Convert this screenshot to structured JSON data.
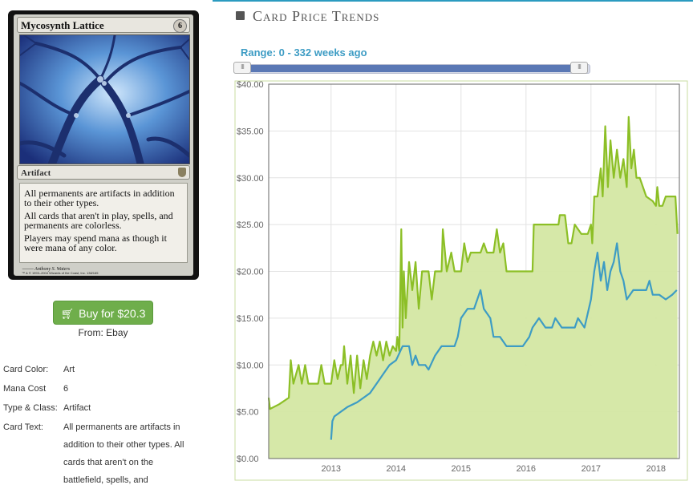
{
  "card": {
    "name": "Mycosynth Lattice",
    "mana_cost_symbol": "6",
    "type_line": "Artifact",
    "rules_text": [
      "All permanents are artifacts in addition to their other types.",
      "All cards that aren't in play, spells, and permanents are colorless.",
      "Players may spend mana as though it were mana of any color."
    ],
    "artist": "Anthony S. Waters",
    "copyright": "™ & © 1993–2004 Wizards of the Coast, Inc. 138/165"
  },
  "buy": {
    "label": "Buy for $20.3",
    "icon": "cart-icon",
    "from_label": "From:",
    "from_value": "Ebay"
  },
  "info": {
    "rows": [
      {
        "key": "Card Color:",
        "value": "Art"
      },
      {
        "key": "Mana Cost",
        "value": "6"
      },
      {
        "key": "Type & Class:",
        "value": "Artifact"
      }
    ],
    "card_text_key": "Card Text:",
    "card_text_lines": [
      "All permanents are artifacts in",
      "addition to their other types. All",
      "cards that aren't on the",
      "battlefield, spells, and"
    ]
  },
  "header": {
    "title": "Card Price Trends",
    "icon": "calendar-icon"
  },
  "range": {
    "label": "Range: 0 - 332 weeks ago",
    "min_weeks": 0,
    "max_weeks": 332,
    "handle_glyph": "III"
  },
  "colors": {
    "accent": "#2b9bc0",
    "green_line": "#8cbf26",
    "green_fill": "#d4e7a3",
    "blue_line": "#3d9cc4",
    "buy_button": "#6fae4b",
    "slider": "#5a78b5"
  },
  "chart_data": {
    "type": "area",
    "y_ticks": [
      "$0.00",
      "$5.00",
      "$10.00",
      "$15.00",
      "$20.00",
      "$25.00",
      "$30.00",
      "$35.00",
      "$40.00"
    ],
    "x_ticks": [
      "2013",
      "2014",
      "2015",
      "2016",
      "2017",
      "2018"
    ],
    "ylim": [
      0,
      40
    ],
    "xlim": [
      2012.04,
      2018.36
    ],
    "grid": true,
    "series": [
      {
        "color": "#8cbf26",
        "filled": true,
        "points": [
          [
            2012.04,
            6.5
          ],
          [
            2012.06,
            5.3
          ],
          [
            2012.2,
            5.8
          ],
          [
            2012.35,
            6.5
          ],
          [
            2012.38,
            10.5
          ],
          [
            2012.42,
            8
          ],
          [
            2012.5,
            10
          ],
          [
            2012.55,
            8
          ],
          [
            2012.6,
            10
          ],
          [
            2012.65,
            8
          ],
          [
            2012.8,
            8
          ],
          [
            2012.85,
            10
          ],
          [
            2012.9,
            8
          ],
          [
            2013.0,
            8
          ],
          [
            2013.05,
            10.5
          ],
          [
            2013.1,
            8.5
          ],
          [
            2013.15,
            10
          ],
          [
            2013.18,
            10
          ],
          [
            2013.2,
            12
          ],
          [
            2013.25,
            8
          ],
          [
            2013.3,
            11
          ],
          [
            2013.35,
            7
          ],
          [
            2013.4,
            11
          ],
          [
            2013.45,
            7.5
          ],
          [
            2013.5,
            10.5
          ],
          [
            2013.55,
            8.5
          ],
          [
            2013.6,
            11
          ],
          [
            2013.65,
            12.5
          ],
          [
            2013.7,
            11
          ],
          [
            2013.75,
            12.5
          ],
          [
            2013.8,
            10.5
          ],
          [
            2013.85,
            12.5
          ],
          [
            2013.9,
            11
          ],
          [
            2013.95,
            12
          ],
          [
            2014.0,
            11.5
          ],
          [
            2014.02,
            13
          ],
          [
            2014.05,
            11.5
          ],
          [
            2014.08,
            24.5
          ],
          [
            2014.1,
            14
          ],
          [
            2014.12,
            20
          ],
          [
            2014.15,
            15
          ],
          [
            2014.2,
            21
          ],
          [
            2014.25,
            18
          ],
          [
            2014.3,
            21
          ],
          [
            2014.35,
            16
          ],
          [
            2014.4,
            20
          ],
          [
            2014.5,
            20
          ],
          [
            2014.55,
            17
          ],
          [
            2014.6,
            20
          ],
          [
            2014.7,
            20
          ],
          [
            2014.72,
            24.5
          ],
          [
            2014.78,
            20
          ],
          [
            2014.85,
            22
          ],
          [
            2014.9,
            20
          ],
          [
            2015.0,
            20
          ],
          [
            2015.05,
            23
          ],
          [
            2015.1,
            21
          ],
          [
            2015.15,
            22
          ],
          [
            2015.2,
            22
          ],
          [
            2015.3,
            22
          ],
          [
            2015.35,
            23
          ],
          [
            2015.4,
            22
          ],
          [
            2015.5,
            22
          ],
          [
            2015.55,
            24.5
          ],
          [
            2015.6,
            22
          ],
          [
            2015.65,
            23
          ],
          [
            2015.7,
            20
          ],
          [
            2015.8,
            20
          ],
          [
            2016.0,
            20
          ],
          [
            2016.1,
            20
          ],
          [
            2016.12,
            25
          ],
          [
            2016.2,
            25
          ],
          [
            2016.3,
            25
          ],
          [
            2016.35,
            25
          ],
          [
            2016.5,
            25
          ],
          [
            2016.52,
            26
          ],
          [
            2016.6,
            26
          ],
          [
            2016.65,
            23
          ],
          [
            2016.7,
            23
          ],
          [
            2016.75,
            25
          ],
          [
            2016.85,
            24
          ],
          [
            2016.95,
            24
          ],
          [
            2017.0,
            25
          ],
          [
            2017.02,
            23
          ],
          [
            2017.05,
            28
          ],
          [
            2017.1,
            28
          ],
          [
            2017.15,
            31
          ],
          [
            2017.18,
            28
          ],
          [
            2017.22,
            35.5
          ],
          [
            2017.26,
            29
          ],
          [
            2017.3,
            34
          ],
          [
            2017.35,
            30
          ],
          [
            2017.4,
            33
          ],
          [
            2017.45,
            30
          ],
          [
            2017.5,
            32
          ],
          [
            2017.55,
            29
          ],
          [
            2017.58,
            36.5
          ],
          [
            2017.62,
            31
          ],
          [
            2017.66,
            33
          ],
          [
            2017.7,
            30
          ],
          [
            2017.75,
            30
          ],
          [
            2017.85,
            28
          ],
          [
            2017.95,
            27.5
          ],
          [
            2018.0,
            27
          ],
          [
            2018.02,
            29
          ],
          [
            2018.05,
            27
          ],
          [
            2018.1,
            27
          ],
          [
            2018.15,
            28
          ],
          [
            2018.3,
            28
          ],
          [
            2018.33,
            24
          ]
        ]
      },
      {
        "color": "#3d9cc4",
        "filled": false,
        "points": [
          [
            2013.0,
            2
          ],
          [
            2013.02,
            4
          ],
          [
            2013.05,
            4.5
          ],
          [
            2013.15,
            5
          ],
          [
            2013.25,
            5.5
          ],
          [
            2013.4,
            6
          ],
          [
            2013.5,
            6.5
          ],
          [
            2013.6,
            7
          ],
          [
            2013.7,
            8
          ],
          [
            2013.8,
            9
          ],
          [
            2013.9,
            10
          ],
          [
            2014.0,
            10.5
          ],
          [
            2014.1,
            12
          ],
          [
            2014.2,
            12
          ],
          [
            2014.25,
            10
          ],
          [
            2014.3,
            11
          ],
          [
            2014.35,
            10
          ],
          [
            2014.45,
            10
          ],
          [
            2014.5,
            9.5
          ],
          [
            2014.6,
            11
          ],
          [
            2014.7,
            12
          ],
          [
            2014.8,
            12
          ],
          [
            2014.9,
            12
          ],
          [
            2014.95,
            13
          ],
          [
            2015.0,
            15
          ],
          [
            2015.1,
            16
          ],
          [
            2015.2,
            16
          ],
          [
            2015.25,
            17
          ],
          [
            2015.3,
            18
          ],
          [
            2015.35,
            16
          ],
          [
            2015.45,
            15
          ],
          [
            2015.5,
            13
          ],
          [
            2015.6,
            13
          ],
          [
            2015.7,
            12
          ],
          [
            2015.85,
            12
          ],
          [
            2015.95,
            12
          ],
          [
            2016.05,
            13
          ],
          [
            2016.1,
            14
          ],
          [
            2016.2,
            15
          ],
          [
            2016.3,
            14
          ],
          [
            2016.4,
            14
          ],
          [
            2016.45,
            15
          ],
          [
            2016.55,
            14
          ],
          [
            2016.65,
            14
          ],
          [
            2016.75,
            14
          ],
          [
            2016.8,
            15
          ],
          [
            2016.9,
            14
          ],
          [
            2017.0,
            17
          ],
          [
            2017.05,
            20
          ],
          [
            2017.1,
            22
          ],
          [
            2017.15,
            19
          ],
          [
            2017.2,
            21
          ],
          [
            2017.25,
            18
          ],
          [
            2017.3,
            20
          ],
          [
            2017.35,
            21
          ],
          [
            2017.4,
            23
          ],
          [
            2017.45,
            20
          ],
          [
            2017.5,
            19
          ],
          [
            2017.55,
            17
          ],
          [
            2017.65,
            18
          ],
          [
            2017.75,
            18
          ],
          [
            2017.85,
            18
          ],
          [
            2017.9,
            19
          ],
          [
            2017.95,
            17.5
          ],
          [
            2018.05,
            17.5
          ],
          [
            2018.15,
            17
          ],
          [
            2018.25,
            17.5
          ],
          [
            2018.32,
            18
          ]
        ]
      }
    ]
  }
}
